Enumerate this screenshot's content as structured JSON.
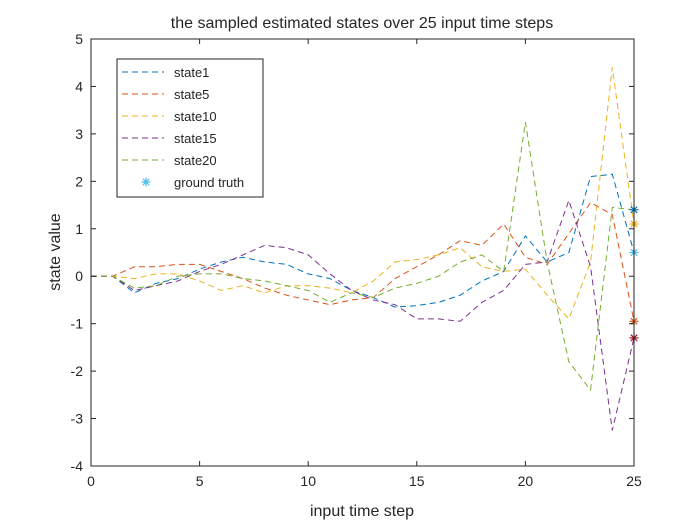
{
  "chart_data": {
    "type": "line",
    "title": "the sampled estimated states over 25 input time steps",
    "xlabel": "input time step",
    "ylabel": "state value",
    "xlim": [
      0,
      25
    ],
    "ylim": [
      -4,
      5
    ],
    "xticks": [
      0,
      5,
      10,
      15,
      20,
      25
    ],
    "yticks": [
      -4,
      -3,
      -2,
      -1,
      0,
      1,
      2,
      3,
      4,
      5
    ],
    "grid": false,
    "legend_position": "top-left",
    "x": [
      0,
      1,
      2,
      3,
      4,
      5,
      6,
      7,
      8,
      9,
      10,
      11,
      12,
      13,
      14,
      15,
      16,
      17,
      18,
      19,
      20,
      21,
      22,
      23,
      24,
      25
    ],
    "series": [
      {
        "name": "state1",
        "color": "#0072BD",
        "line_style": "dashed",
        "values": [
          0,
          0,
          -0.35,
          -0.15,
          -0.05,
          0.15,
          0.3,
          0.4,
          0.3,
          0.25,
          0.05,
          -0.05,
          -0.3,
          -0.45,
          -0.65,
          -0.62,
          -0.55,
          -0.4,
          -0.1,
          0.1,
          0.85,
          0.3,
          0.5,
          2.1,
          2.15,
          0.5
        ]
      },
      {
        "name": "state5",
        "color": "#D95319",
        "line_style": "dashed",
        "values": [
          0,
          0,
          0.2,
          0.2,
          0.25,
          0.25,
          0.1,
          -0.05,
          -0.25,
          -0.4,
          -0.5,
          -0.6,
          -0.5,
          -0.45,
          -0.05,
          0.2,
          0.45,
          0.75,
          0.65,
          1.1,
          0.4,
          0.25,
          0.9,
          1.55,
          1.3,
          -0.95
        ]
      },
      {
        "name": "state10",
        "color": "#EDB120",
        "line_style": "dashed",
        "values": [
          0,
          0,
          -0.05,
          0.05,
          0.05,
          -0.1,
          -0.3,
          -0.2,
          -0.35,
          -0.2,
          -0.2,
          -0.25,
          -0.35,
          -0.1,
          0.3,
          0.35,
          0.45,
          0.6,
          0.2,
          0.1,
          0.15,
          -0.4,
          -0.9,
          0.3,
          4.4,
          1.1
        ]
      },
      {
        "name": "state15",
        "color": "#7E2F8E",
        "line_style": "dashed",
        "values": [
          0,
          0,
          -0.3,
          -0.2,
          -0.1,
          0.1,
          0.25,
          0.45,
          0.65,
          0.6,
          0.45,
          0.05,
          -0.3,
          -0.5,
          -0.6,
          -0.9,
          -0.9,
          -0.95,
          -0.55,
          -0.3,
          0.25,
          0.3,
          1.6,
          0.2,
          -3.25,
          -1.3
        ]
      },
      {
        "name": "state20",
        "color": "#77AC30",
        "line_style": "dashed",
        "values": [
          0,
          0,
          -0.25,
          -0.2,
          0.0,
          0.05,
          0.05,
          -0.05,
          -0.1,
          -0.2,
          -0.3,
          -0.55,
          -0.35,
          -0.45,
          -0.25,
          -0.15,
          0.0,
          0.3,
          0.45,
          0.1,
          3.25,
          0.3,
          -1.8,
          -2.4,
          1.45,
          1.4
        ]
      }
    ],
    "ground_truth": {
      "name": "ground truth",
      "marker": "asterisk",
      "marker_color": "#4DBEEE",
      "x": 25,
      "points": [
        {
          "value": 1.4,
          "color": "#0072BD"
        },
        {
          "value": 1.1,
          "color": "#EDB120"
        },
        {
          "value": 0.5,
          "color": "#4DBEEE"
        },
        {
          "value": -0.95,
          "color": "#D95319"
        },
        {
          "value": -1.3,
          "color": "#A2142F"
        }
      ]
    }
  }
}
